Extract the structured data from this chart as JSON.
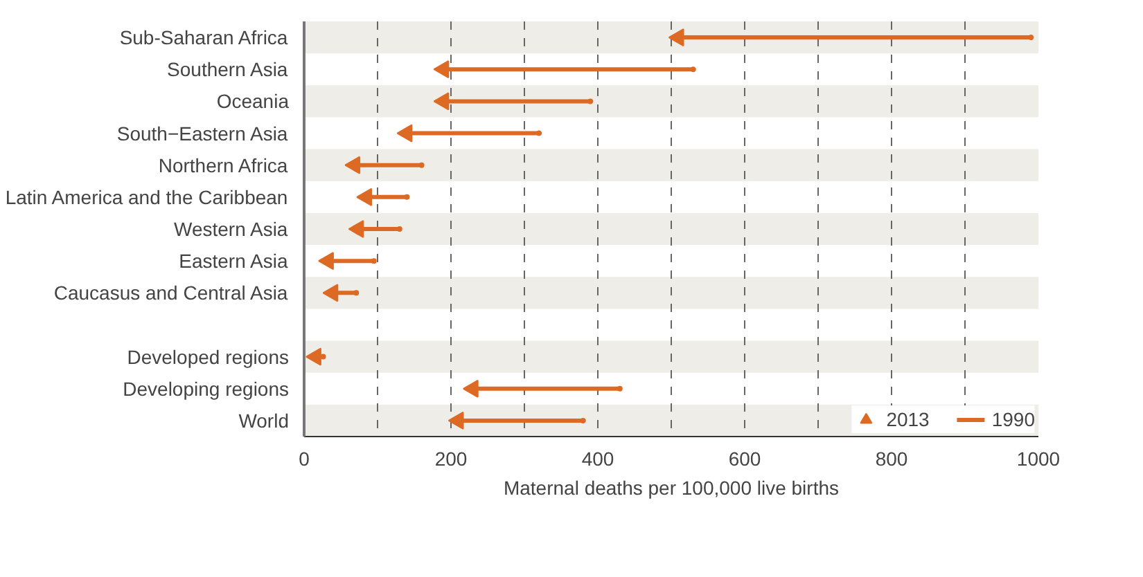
{
  "chart_data": {
    "type": "scatter",
    "orientation": "horizontal",
    "xlabel": "Maternal deaths per 100,000 live births",
    "categories": [
      "Sub-Saharan Africa",
      "Southern Asia",
      "Oceania",
      "South−Eastern Asia",
      "Northern Africa",
      "Latin America and the Caribbean",
      "Western Asia",
      "Eastern Asia",
      "Caucasus and Central Asia",
      null,
      "Developed regions",
      "Developing regions",
      "World"
    ],
    "series": [
      {
        "name": "1990",
        "color": "#dd6a24",
        "values": [
          990,
          530,
          390,
          320,
          160,
          140,
          130,
          95,
          71,
          null,
          26,
          430,
          380
        ]
      },
      {
        "name": "2013",
        "color": "#dd6a24",
        "values": [
          510,
          190,
          190,
          140,
          69,
          85,
          74,
          33,
          39,
          null,
          16,
          230,
          210
        ]
      }
    ],
    "xlim": [
      0,
      1000
    ],
    "xticks": [
      0,
      {
        "value": 100,
        "label": null
      },
      200,
      {
        "value": 300,
        "label": null
      },
      400,
      {
        "value": 500,
        "label": null
      },
      600,
      {
        "value": 700,
        "label": null
      },
      800,
      {
        "value": 900,
        "label": null
      },
      1000
    ],
    "grid": "x",
    "legend": "bottom right"
  }
}
